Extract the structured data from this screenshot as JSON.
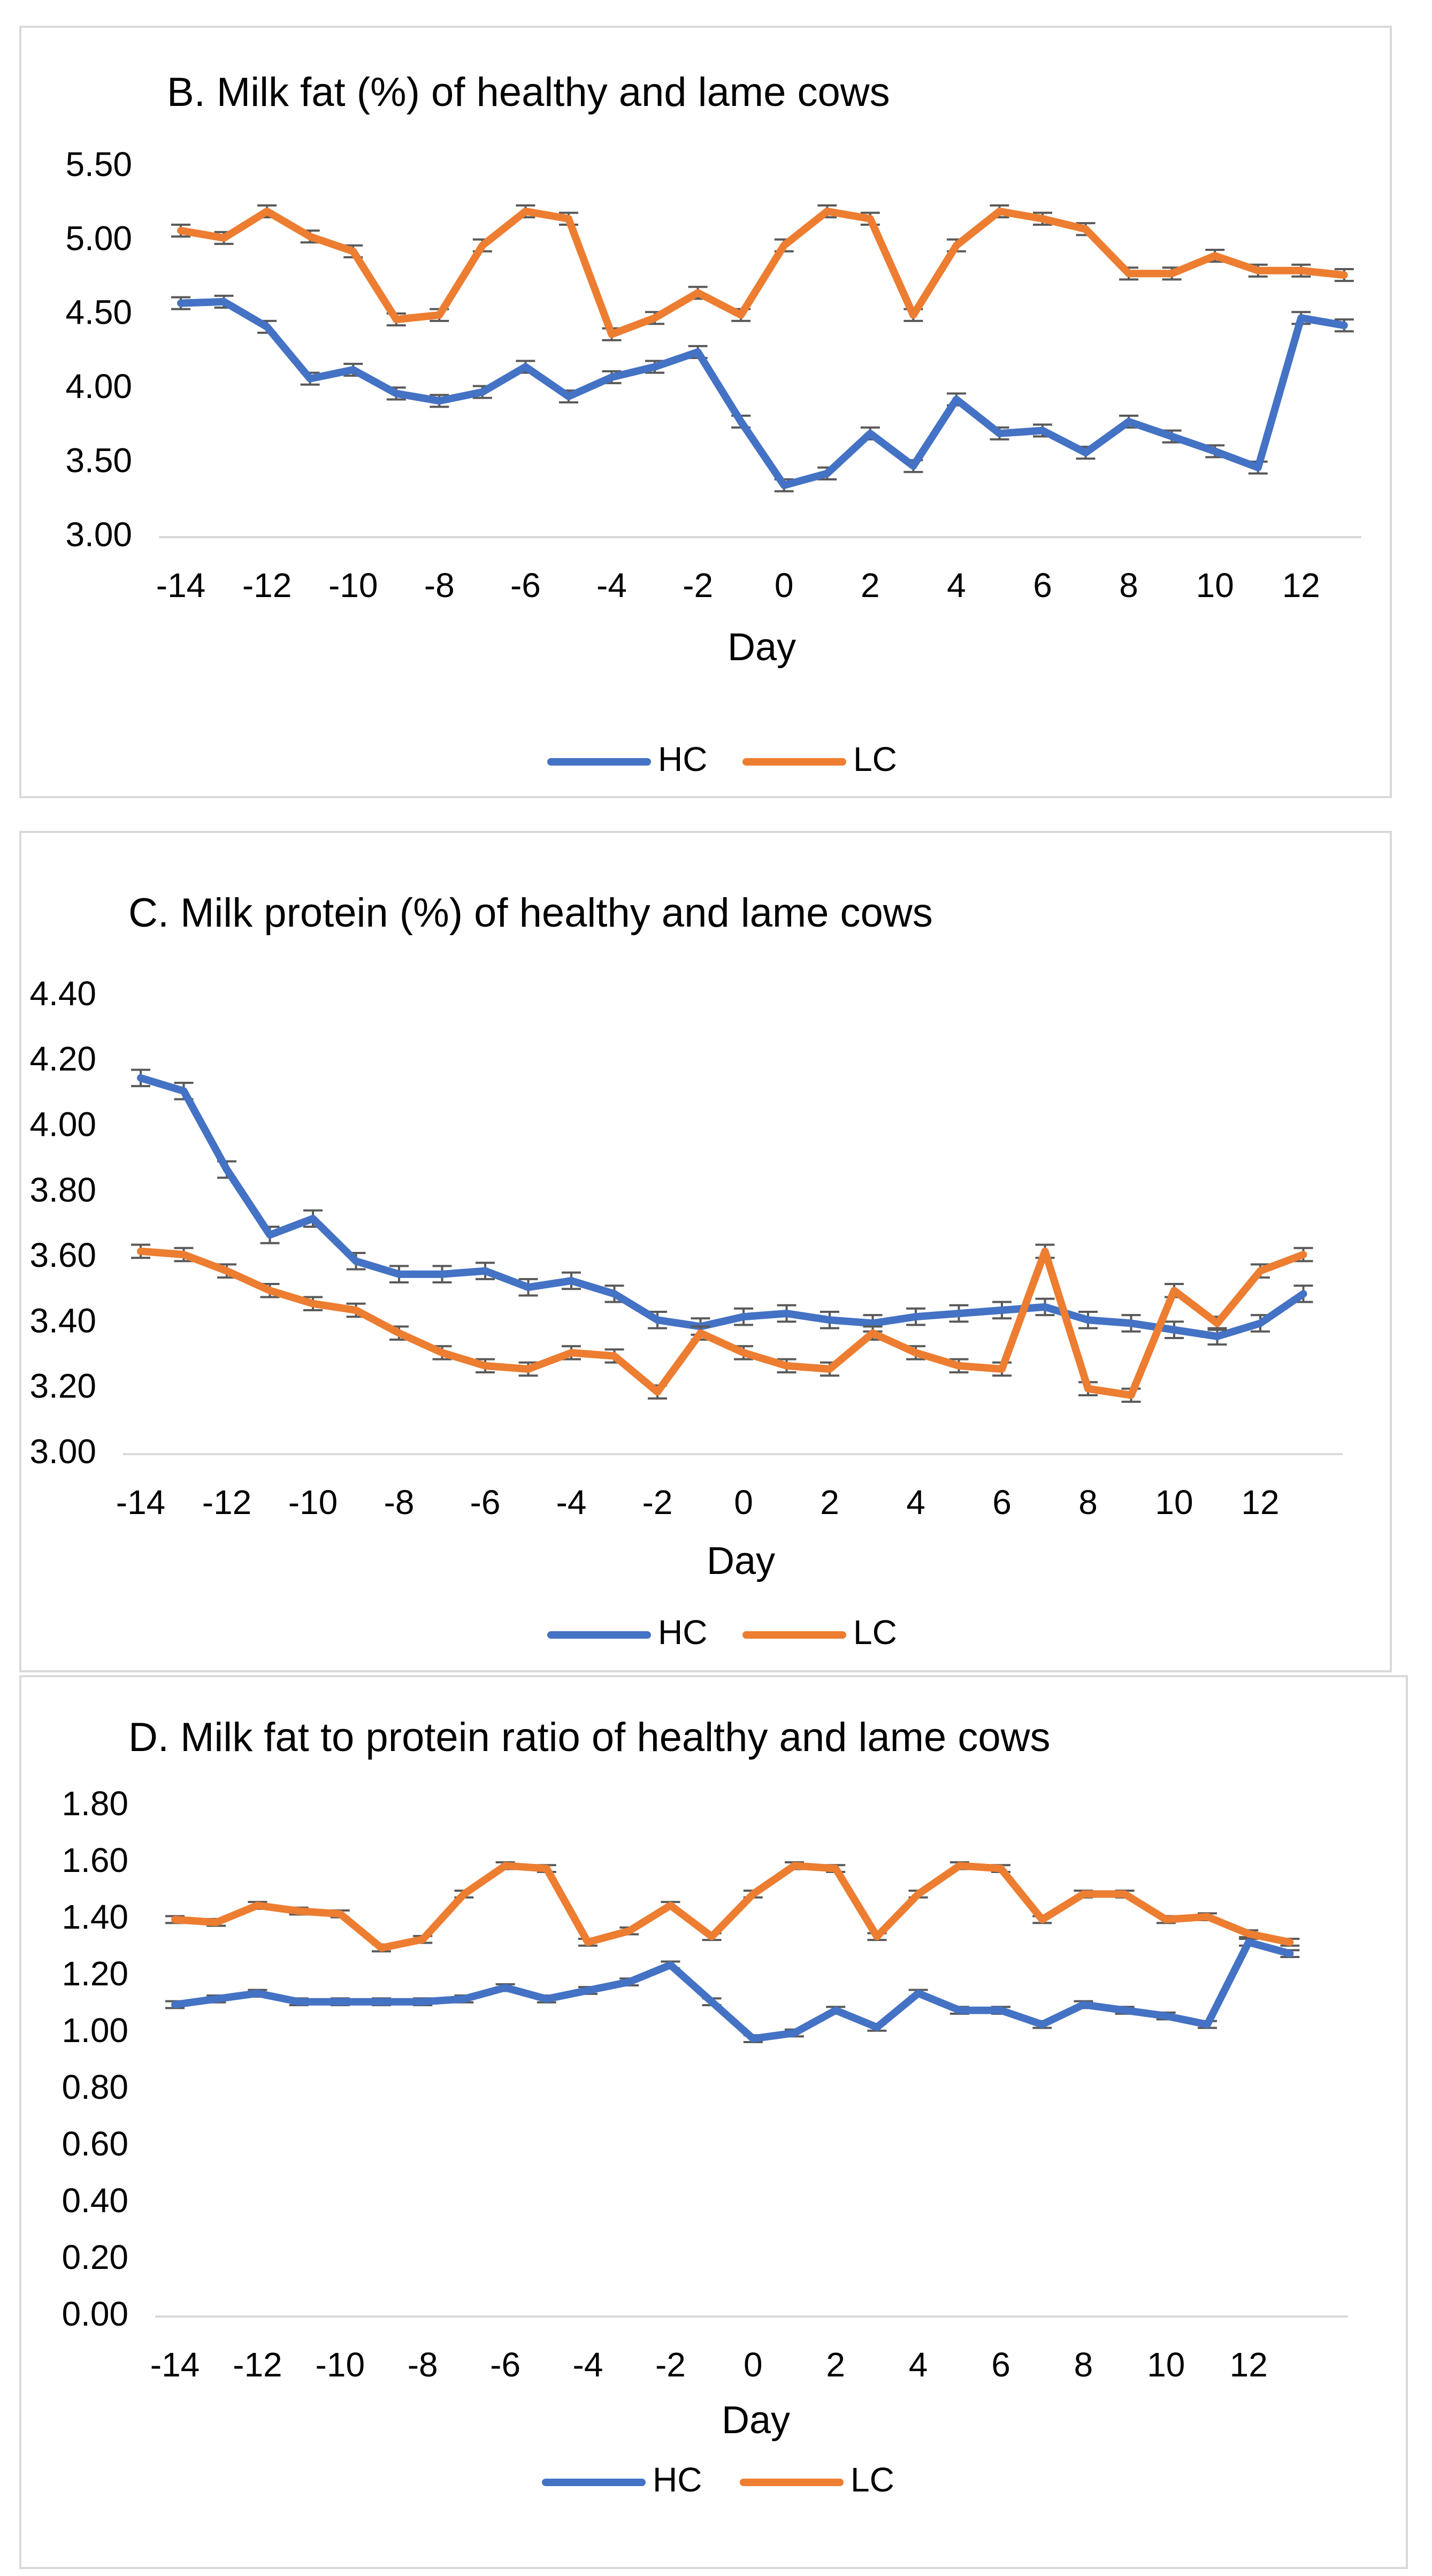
{
  "chart_data": [
    {
      "type": "line",
      "title": "B. Milk fat (%) of healthy and lame cows",
      "xlabel": "Day",
      "ylabel": "",
      "x": [
        -14,
        -13,
        -12,
        -11,
        -10,
        -9,
        -8,
        -7,
        -6,
        -5,
        -4,
        -3,
        -2,
        -1,
        0,
        1,
        2,
        3,
        4,
        5,
        6,
        7,
        8,
        9,
        10,
        11,
        12,
        13
      ],
      "xticks": [
        -14,
        -12,
        -10,
        -8,
        -6,
        -4,
        -2,
        0,
        2,
        4,
        6,
        8,
        10,
        12
      ],
      "xtick_labels": [
        "-14",
        "-12",
        "-10",
        "-8",
        "-6",
        "-4",
        "-2",
        "0",
        "2",
        "4",
        "6",
        "8",
        "10",
        "12"
      ],
      "yticks": [
        3.0,
        3.5,
        4.0,
        4.5,
        5.0,
        5.5
      ],
      "ytick_labels": [
        "3.00",
        "3.50",
        "4.00",
        "4.50",
        "5.00",
        "5.50"
      ],
      "ylim": [
        3.0,
        5.5
      ],
      "legend_position": "bottom",
      "series": [
        {
          "name": "HC",
          "color": "#4472C4",
          "values": [
            4.58,
            4.59,
            4.42,
            4.07,
            4.13,
            3.97,
            3.92,
            3.98,
            4.15,
            3.95,
            4.08,
            4.15,
            4.25,
            3.78,
            3.35,
            3.43,
            3.7,
            3.48,
            3.93,
            3.7,
            3.72,
            3.57,
            3.78,
            3.68,
            3.58,
            3.47,
            4.48,
            4.43
          ],
          "error": 0.04
        },
        {
          "name": "LC",
          "color": "#ED7D31",
          "values": [
            5.07,
            5.02,
            5.2,
            5.03,
            4.93,
            4.47,
            4.5,
            4.97,
            5.2,
            5.15,
            4.37,
            4.48,
            4.65,
            4.5,
            4.97,
            5.2,
            5.15,
            4.5,
            4.97,
            5.2,
            5.15,
            5.08,
            4.78,
            4.78,
            4.9,
            4.8,
            4.8,
            4.77
          ],
          "error": 0.04
        }
      ]
    },
    {
      "type": "line",
      "title": "C. Milk protein (%) of healthy and lame cows",
      "xlabel": "Day",
      "ylabel": "",
      "x": [
        -14,
        -13,
        -12,
        -11,
        -10,
        -9,
        -8,
        -7,
        -6,
        -5,
        -4,
        -3,
        -2,
        -1,
        0,
        1,
        2,
        3,
        4,
        5,
        6,
        7,
        8,
        9,
        10,
        11,
        12,
        13
      ],
      "xticks": [
        -14,
        -12,
        -10,
        -8,
        -6,
        -4,
        -2,
        0,
        2,
        4,
        6,
        8,
        10,
        12
      ],
      "xtick_labels": [
        "-14",
        "-12",
        "-10",
        "-8",
        "-6",
        "-4",
        "-2",
        "0",
        "2",
        "4",
        "6",
        "8",
        "10",
        "12"
      ],
      "yticks": [
        3.0,
        3.2,
        3.4,
        3.6,
        3.8,
        4.0,
        4.2,
        4.4
      ],
      "ytick_labels": [
        "3.00",
        "3.20",
        "3.40",
        "3.60",
        "3.80",
        "4.00",
        "4.20",
        "4.40"
      ],
      "ylim": [
        3.0,
        4.4
      ],
      "legend_position": "bottom",
      "series": [
        {
          "name": "HC",
          "color": "#4472C4",
          "values": [
            4.15,
            4.11,
            3.87,
            3.67,
            3.72,
            3.59,
            3.55,
            3.55,
            3.56,
            3.51,
            3.53,
            3.49,
            3.41,
            3.39,
            3.42,
            3.43,
            3.41,
            3.4,
            3.42,
            3.43,
            3.44,
            3.45,
            3.41,
            3.4,
            3.38,
            3.36,
            3.4,
            3.49
          ],
          "error": 0.025
        },
        {
          "name": "LC",
          "color": "#ED7D31",
          "values": [
            3.62,
            3.61,
            3.56,
            3.5,
            3.46,
            3.44,
            3.37,
            3.31,
            3.27,
            3.26,
            3.31,
            3.3,
            3.19,
            3.37,
            3.31,
            3.27,
            3.26,
            3.37,
            3.31,
            3.27,
            3.26,
            3.62,
            3.2,
            3.18,
            3.5,
            3.4,
            3.56,
            3.61
          ],
          "error": 0.02
        }
      ]
    },
    {
      "type": "line",
      "title": "D. Milk fat to protein ratio of healthy and lame cows",
      "xlabel": "Day",
      "ylabel": "",
      "x": [
        -14,
        -13,
        -12,
        -11,
        -10,
        -9,
        -8,
        -7,
        -6,
        -5,
        -4,
        -3,
        -2,
        -1,
        0,
        1,
        2,
        3,
        4,
        5,
        6,
        7,
        8,
        9,
        10,
        11,
        12,
        13
      ],
      "xticks": [
        -14,
        -12,
        -10,
        -8,
        -6,
        -4,
        -2,
        0,
        2,
        4,
        6,
        8,
        10,
        12
      ],
      "xtick_labels": [
        "-14",
        "-12",
        "-10",
        "-8",
        "-6",
        "-4",
        "-2",
        "0",
        "2",
        "4",
        "6",
        "8",
        "10",
        "12"
      ],
      "yticks": [
        0.0,
        0.2,
        0.4,
        0.6,
        0.8,
        1.0,
        1.2,
        1.4,
        1.6,
        1.8
      ],
      "ytick_labels": [
        "0.00",
        "0.20",
        "0.40",
        "0.60",
        "0.80",
        "1.00",
        "1.20",
        "1.40",
        "1.60",
        "1.80"
      ],
      "ylim": [
        0.0,
        1.8
      ],
      "legend_position": "bottom",
      "series": [
        {
          "name": "HC",
          "color": "#4472C4",
          "values": [
            1.1,
            1.12,
            1.14,
            1.11,
            1.11,
            1.11,
            1.11,
            1.12,
            1.16,
            1.12,
            1.15,
            1.18,
            1.24,
            1.11,
            0.98,
            1.0,
            1.08,
            1.02,
            1.14,
            1.08,
            1.08,
            1.03,
            1.1,
            1.08,
            1.06,
            1.03,
            1.32,
            1.28
          ],
          "error": 0.012
        },
        {
          "name": "LC",
          "color": "#ED7D31",
          "values": [
            1.4,
            1.39,
            1.45,
            1.43,
            1.42,
            1.3,
            1.33,
            1.49,
            1.59,
            1.58,
            1.32,
            1.36,
            1.45,
            1.34,
            1.49,
            1.59,
            1.58,
            1.34,
            1.49,
            1.59,
            1.58,
            1.4,
            1.49,
            1.49,
            1.4,
            1.41,
            1.35,
            1.32
          ],
          "error": 0.012
        }
      ]
    }
  ]
}
